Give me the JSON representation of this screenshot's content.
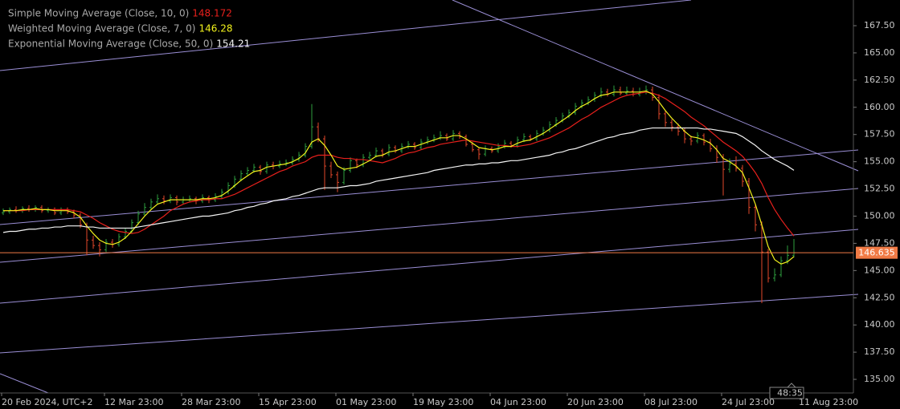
{
  "chart_data": {
    "type": "ohlc",
    "up_color": "#2e9e3e",
    "down_color": "#e2472a",
    "categories": [
      "20 Feb 2024, UTC+2",
      null,
      null,
      null,
      null,
      null,
      null,
      null,
      null,
      null,
      null,
      null,
      null,
      null,
      null,
      null,
      "12 Mar 23:00",
      null,
      null,
      null,
      null,
      null,
      null,
      null,
      null,
      null,
      null,
      null,
      "28 Mar 23:00",
      null,
      null,
      null,
      null,
      null,
      null,
      null,
      null,
      null,
      null,
      null,
      "15 Apr 23:00",
      null,
      null,
      null,
      null,
      null,
      null,
      null,
      null,
      null,
      null,
      null,
      "01 May 23:00",
      null,
      null,
      null,
      null,
      null,
      null,
      null,
      null,
      null,
      null,
      null,
      "19 May 23:00",
      null,
      null,
      null,
      null,
      null,
      null,
      null,
      null,
      null,
      null,
      null,
      "04 Jun 23:00",
      null,
      null,
      null,
      null,
      null,
      null,
      null,
      null,
      null,
      null,
      null,
      "20 Jun 23:00",
      null,
      null,
      null,
      null,
      null,
      null,
      null,
      null,
      null,
      null,
      null,
      "08 Jul 23:00",
      null,
      null,
      null,
      null,
      null,
      null,
      null,
      null,
      null,
      null,
      null,
      "24 Jul 23:00",
      null,
      null,
      null,
      null,
      null,
      null,
      null,
      null,
      null,
      null,
      null,
      "11 Aug 23:00"
    ],
    "open": [
      150.3,
      150.4,
      150.6,
      150.5,
      150.7,
      150.6,
      150.8,
      150.5,
      150.6,
      150.3,
      150.6,
      150.4,
      150.1,
      149.2,
      147.8,
      147.3,
      146.9,
      147.6,
      147.4,
      148.1,
      148.6,
      149.4,
      150.2,
      150.8,
      151.3,
      151.6,
      151.4,
      151.7,
      151.3,
      151.5,
      151.6,
      151.4,
      151.7,
      151.5,
      151.8,
      152.2,
      152.8,
      153.4,
      153.9,
      154.2,
      154.5,
      154.1,
      154.7,
      154.6,
      154.8,
      154.9,
      155.2,
      155.6,
      156.4,
      158.2,
      157.1,
      154.6,
      153.8,
      153.1,
      154.2,
      155.1,
      154.7,
      155.4,
      155.6,
      156.0,
      155.7,
      156.3,
      156.0,
      156.4,
      156.6,
      156.3,
      156.8,
      157.0,
      157.2,
      157.4,
      157.1,
      157.6,
      157.3,
      156.6,
      156.1,
      155.7,
      156.2,
      156.0,
      156.4,
      156.7,
      156.5,
      157.0,
      157.3,
      157.1,
      157.6,
      157.9,
      158.4,
      158.8,
      159.2,
      159.5,
      160.1,
      160.4,
      160.7,
      161.1,
      161.4,
      161.2,
      161.6,
      161.3,
      161.5,
      161.2,
      161.4,
      161.6,
      160.9,
      159.4,
      158.6,
      158.2,
      157.8,
      157.1,
      156.9,
      157.4,
      156.8,
      156.2,
      155.4,
      154.3,
      154.8,
      154.4,
      153.2,
      150.8,
      149.2,
      146.7,
      144.3,
      144.6,
      145.9,
      146.4,
      null
    ],
    "high": [
      150.7,
      150.8,
      150.9,
      150.9,
      151.0,
      151.0,
      151.0,
      150.8,
      150.8,
      150.8,
      150.8,
      150.6,
      150.3,
      149.4,
      148.2,
      147.6,
      147.9,
      147.9,
      148.4,
      148.9,
      149.7,
      150.5,
      151.2,
      151.6,
      152.0,
      151.9,
      152.0,
      151.9,
      151.8,
      151.9,
      151.8,
      152.0,
      151.9,
      152.1,
      152.5,
      153.1,
      153.7,
      154.2,
      154.5,
      154.8,
      154.7,
      155.0,
      155.0,
      155.1,
      155.2,
      155.5,
      155.9,
      156.7,
      160.3,
      158.6,
      157.4,
      155.0,
      154.1,
      154.5,
      155.4,
      155.3,
      155.7,
      155.9,
      156.3,
      156.2,
      156.6,
      156.5,
      156.7,
      156.9,
      156.8,
      157.1,
      157.3,
      157.5,
      157.8,
      157.6,
      157.9,
      157.8,
      157.5,
      156.8,
      156.3,
      156.5,
      156.4,
      156.7,
      157.0,
      156.9,
      157.3,
      157.6,
      157.5,
      157.9,
      158.2,
      158.7,
      159.1,
      159.5,
      159.8,
      160.4,
      160.7,
      161.0,
      161.4,
      161.8,
      161.7,
      162.0,
      161.9,
      161.9,
      161.8,
      161.8,
      162.0,
      161.9,
      161.2,
      159.7,
      158.9,
      158.5,
      158.1,
      157.4,
      157.7,
      157.6,
      157.1,
      156.5,
      155.7,
      155.3,
      155.5,
      154.7,
      153.5,
      151.1,
      149.5,
      147.0,
      145.2,
      146.3,
      147.3,
      147.9,
      null
    ],
    "low": [
      150.1,
      150.2,
      150.3,
      150.3,
      150.4,
      150.4,
      150.3,
      150.3,
      150.1,
      150.1,
      150.2,
      149.8,
      148.9,
      146.4,
      147.0,
      146.3,
      146.7,
      147.1,
      147.2,
      147.9,
      148.4,
      149.2,
      150.0,
      150.6,
      151.1,
      151.1,
      151.2,
      151.0,
      151.1,
      151.3,
      151.1,
      151.2,
      151.2,
      151.3,
      151.6,
      152.0,
      152.6,
      153.2,
      153.7,
      154.0,
      153.8,
      153.9,
      154.3,
      154.4,
      154.6,
      154.7,
      155.0,
      155.4,
      156.2,
      156.8,
      152.4,
      153.5,
      152.2,
      152.9,
      154.0,
      154.4,
      154.5,
      155.2,
      155.4,
      155.4,
      155.5,
      155.8,
      155.8,
      156.2,
      156.1,
      156.1,
      156.6,
      156.8,
      157.0,
      156.9,
      156.9,
      157.1,
      156.4,
      155.9,
      155.2,
      155.5,
      155.8,
      155.8,
      156.2,
      156.3,
      156.3,
      156.8,
      156.9,
      156.9,
      157.4,
      157.7,
      158.2,
      158.6,
      159.0,
      159.3,
      159.9,
      160.2,
      160.5,
      160.9,
      161.0,
      161.0,
      161.1,
      161.1,
      161.0,
      161.0,
      161.2,
      160.6,
      158.9,
      158.2,
      157.8,
      157.4,
      156.7,
      156.5,
      156.7,
      156.5,
      155.9,
      154.9,
      151.9,
      154.0,
      154.1,
      152.7,
      150.2,
      148.6,
      142.0,
      143.9,
      144.0,
      144.4,
      145.6,
      146.2,
      null
    ],
    "close": [
      150.4,
      150.6,
      150.5,
      150.7,
      150.6,
      150.8,
      150.5,
      150.6,
      150.3,
      150.6,
      150.4,
      150.1,
      149.2,
      147.8,
      147.3,
      146.9,
      147.6,
      147.4,
      148.1,
      148.6,
      149.4,
      150.2,
      150.8,
      151.3,
      151.6,
      151.4,
      151.7,
      151.3,
      151.5,
      151.6,
      151.4,
      151.7,
      151.5,
      151.8,
      152.2,
      152.8,
      153.4,
      153.9,
      154.2,
      154.5,
      154.1,
      154.7,
      154.6,
      154.8,
      154.9,
      155.2,
      155.6,
      156.4,
      158.2,
      157.1,
      154.6,
      153.8,
      153.1,
      154.2,
      155.1,
      154.7,
      155.4,
      155.6,
      156.0,
      155.7,
      156.3,
      156.0,
      156.4,
      156.6,
      156.3,
      156.8,
      157.0,
      157.2,
      157.4,
      157.1,
      157.6,
      157.3,
      156.6,
      156.1,
      155.7,
      156.2,
      156.0,
      156.4,
      156.7,
      156.5,
      157.0,
      157.3,
      157.1,
      157.6,
      157.9,
      158.4,
      158.8,
      159.2,
      159.5,
      160.1,
      160.4,
      160.7,
      161.1,
      161.4,
      161.2,
      161.6,
      161.3,
      161.5,
      161.2,
      161.4,
      161.6,
      160.9,
      159.4,
      158.6,
      158.2,
      157.8,
      157.1,
      156.9,
      157.4,
      156.8,
      156.2,
      155.4,
      154.3,
      154.8,
      154.4,
      153.2,
      150.8,
      149.2,
      146.7,
      144.3,
      144.6,
      145.9,
      146.4,
      146.635,
      null
    ],
    "series": [
      {
        "name": "Simple Moving Average (Close, 10, 0)",
        "color": "#e8201c",
        "values": [
          150.5,
          150.5,
          150.5,
          150.5,
          150.6,
          150.6,
          150.6,
          150.6,
          150.6,
          150.6,
          150.6,
          150.5,
          150.4,
          150.1,
          149.8,
          149.4,
          149.1,
          148.8,
          148.6,
          148.5,
          148.4,
          148.5,
          148.8,
          149.2,
          149.6,
          150.0,
          150.5,
          150.8,
          151.1,
          151.3,
          151.4,
          151.5,
          151.5,
          151.6,
          151.6,
          151.8,
          152.0,
          152.3,
          152.6,
          152.9,
          153.2,
          153.5,
          153.8,
          154.1,
          154.3,
          154.6,
          154.8,
          155.0,
          155.4,
          155.6,
          155.6,
          155.6,
          155.4,
          155.3,
          155.3,
          155.2,
          155.2,
          155.1,
          155.0,
          154.9,
          155.1,
          155.3,
          155.6,
          155.8,
          155.9,
          156.1,
          156.3,
          156.4,
          156.6,
          156.7,
          156.8,
          156.9,
          157.0,
          156.9,
          156.8,
          156.7,
          156.6,
          156.5,
          156.5,
          156.4,
          156.4,
          156.5,
          156.6,
          156.8,
          157.0,
          157.2,
          157.5,
          157.8,
          158.1,
          158.5,
          158.9,
          159.2,
          159.6,
          160.0,
          160.3,
          160.6,
          160.9,
          161.1,
          161.2,
          161.3,
          161.4,
          161.3,
          161.1,
          160.8,
          160.4,
          160.0,
          159.6,
          159.1,
          158.7,
          158.3,
          157.8,
          157.3,
          156.8,
          156.4,
          156.0,
          155.5,
          154.8,
          154.0,
          153.0,
          151.7,
          150.6,
          149.7,
          148.9,
          148.172,
          null
        ]
      },
      {
        "name": "Weighted Moving Average (Close, 7, 0)",
        "color": "#f2f21c",
        "values": [
          150.5,
          150.5,
          150.5,
          150.6,
          150.6,
          150.7,
          150.6,
          150.6,
          150.5,
          150.5,
          150.5,
          150.3,
          149.9,
          149.1,
          148.4,
          147.8,
          147.5,
          147.4,
          147.6,
          148.0,
          148.6,
          149.3,
          150.0,
          150.6,
          151.1,
          151.3,
          151.5,
          151.5,
          151.5,
          151.5,
          151.5,
          151.6,
          151.6,
          151.7,
          151.9,
          152.3,
          152.8,
          153.3,
          153.7,
          154.1,
          154.2,
          154.5,
          154.6,
          154.7,
          154.8,
          155.0,
          155.3,
          155.8,
          156.8,
          157.1,
          156.5,
          155.6,
          154.6,
          154.3,
          154.4,
          154.5,
          154.8,
          155.1,
          155.5,
          155.6,
          155.9,
          156.0,
          156.2,
          156.4,
          156.4,
          156.6,
          156.8,
          157.0,
          157.2,
          157.2,
          157.4,
          157.4,
          157.1,
          156.7,
          156.3,
          156.2,
          156.1,
          156.2,
          156.4,
          156.4,
          156.7,
          156.9,
          157.0,
          157.3,
          157.6,
          158.0,
          158.4,
          158.8,
          159.2,
          159.7,
          160.1,
          160.4,
          160.8,
          161.1,
          161.2,
          161.4,
          161.4,
          161.4,
          161.4,
          161.4,
          161.5,
          161.2,
          160.5,
          159.7,
          159.0,
          158.4,
          157.8,
          157.3,
          157.2,
          157.0,
          156.7,
          156.1,
          155.3,
          155.0,
          154.6,
          154.0,
          152.6,
          151.1,
          149.2,
          147.2,
          146.0,
          145.6,
          145.8,
          146.28,
          null
        ]
      },
      {
        "name": "Exponential Moving Average (Close, 50, 0)",
        "color": "#f4f4f4",
        "values": [
          148.5,
          148.6,
          148.6,
          148.7,
          148.8,
          148.8,
          148.9,
          148.9,
          149.0,
          149.0,
          149.1,
          149.1,
          149.1,
          149.0,
          149.0,
          148.9,
          148.9,
          148.9,
          148.9,
          148.9,
          148.9,
          149.0,
          149.1,
          149.2,
          149.3,
          149.4,
          149.5,
          149.6,
          149.7,
          149.8,
          149.9,
          150.0,
          150.0,
          150.1,
          150.2,
          150.3,
          150.5,
          150.6,
          150.8,
          150.9,
          151.1,
          151.2,
          151.4,
          151.5,
          151.6,
          151.8,
          151.9,
          152.1,
          152.3,
          152.5,
          152.6,
          152.6,
          152.6,
          152.7,
          152.8,
          152.8,
          152.9,
          153.0,
          153.2,
          153.3,
          153.4,
          153.5,
          153.6,
          153.7,
          153.8,
          153.9,
          154.0,
          154.2,
          154.3,
          154.4,
          154.5,
          154.6,
          154.7,
          154.7,
          154.8,
          154.8,
          154.9,
          154.9,
          155.0,
          155.1,
          155.1,
          155.2,
          155.3,
          155.4,
          155.5,
          155.6,
          155.8,
          155.9,
          156.1,
          156.2,
          156.4,
          156.6,
          156.8,
          157.0,
          157.2,
          157.3,
          157.5,
          157.6,
          157.7,
          157.9,
          158.0,
          158.1,
          158.1,
          158.1,
          158.1,
          158.1,
          158.1,
          158.1,
          158.1,
          158.0,
          158.0,
          157.9,
          157.8,
          157.7,
          157.6,
          157.3,
          156.9,
          156.5,
          156.0,
          155.6,
          155.2,
          154.9,
          154.6,
          154.21,
          null
        ]
      }
    ],
    "ylim": [
      133.75,
      169.86
    ],
    "yticks": [
      {
        "value": 135,
        "label": "135.00"
      },
      {
        "value": 137.5,
        "label": "137.50"
      },
      {
        "value": 140,
        "label": "140.00"
      },
      {
        "value": 142.5,
        "label": "142.50"
      },
      {
        "value": 145,
        "label": "145.00"
      },
      {
        "value": 147.5,
        "label": "147.50"
      },
      {
        "value": 150,
        "label": "150.00"
      },
      {
        "value": 152.5,
        "label": "152.50"
      },
      {
        "value": 155,
        "label": "155.00"
      },
      {
        "value": 157.5,
        "label": "157.50"
      },
      {
        "value": 160,
        "label": "160.00"
      },
      {
        "value": 162.5,
        "label": "162.50"
      },
      {
        "value": 165,
        "label": "165.00"
      },
      {
        "value": 167.5,
        "label": "167.50"
      }
    ],
    "current_price": 146.635,
    "current_price_color": "#f07a45",
    "countdown": "48:35"
  }
}
